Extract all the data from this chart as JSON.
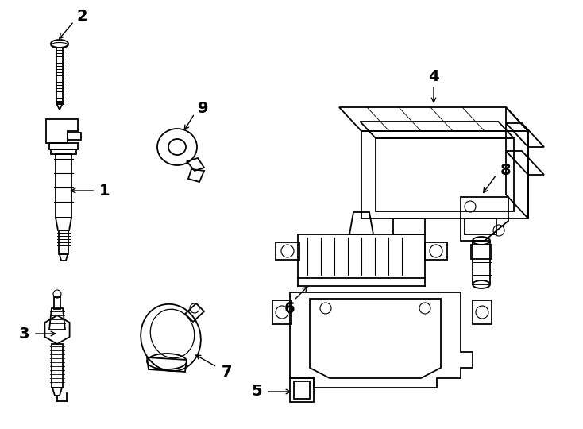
{
  "background_color": "#ffffff",
  "line_color": "#000000",
  "line_width": 1.3,
  "label_fontsize": 14,
  "fig_width": 7.34,
  "fig_height": 5.4,
  "dpi": 100
}
